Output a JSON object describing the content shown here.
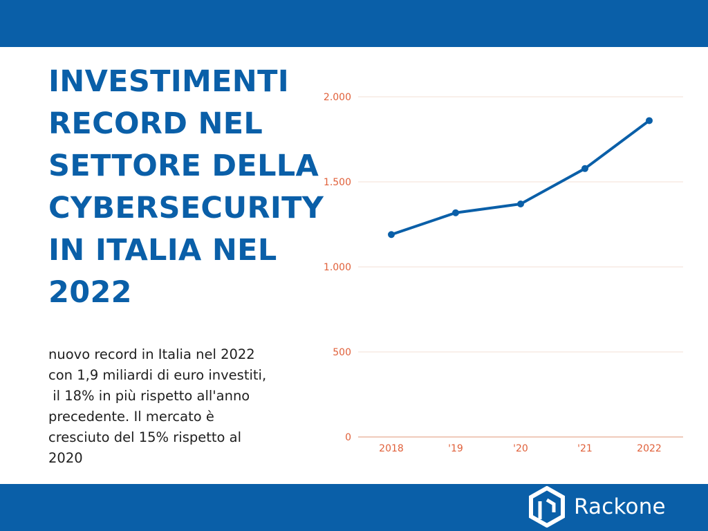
{
  "header": {
    "band_color": "#0a5fa8"
  },
  "title": {
    "lines": [
      "INVESTIMENTI",
      "RECORD NEL",
      "SETTORE DELLA",
      "CYBERSECURITY",
      "IN ITALIA NEL",
      "2022"
    ]
  },
  "description": {
    "lines": [
      "nuovo record in Italia nel 2022",
      "con 1,9 miliardi di euro investiti,",
      " il 18% in più rispetto all'anno",
      "precedente. Il mercato è",
      "cresciuto del 15% rispetto al",
      "2020"
    ]
  },
  "footer": {
    "brand_name": "Rackone",
    "logo_icon": "rackone-hexagon-logo-icon"
  },
  "colors": {
    "primary": "#0a5fa8",
    "tick_text": "#e0603a",
    "grid": "#f3dfd6"
  },
  "chart_data": {
    "type": "line",
    "categories": [
      "2018",
      "'19",
      "'20",
      "'21",
      "2022"
    ],
    "series": [
      {
        "name": "Investimenti",
        "values": [
          1190,
          1318,
          1370,
          1578,
          1860
        ]
      }
    ],
    "y_ticks": [
      0,
      500,
      1000,
      1500,
      2000
    ],
    "y_tick_labels": [
      "0",
      "500",
      "1.000",
      "1.500",
      "2.000"
    ],
    "ylim": [
      0,
      2000
    ],
    "title": "",
    "xlabel": "",
    "ylabel": "",
    "grid": true,
    "legend": "none"
  }
}
